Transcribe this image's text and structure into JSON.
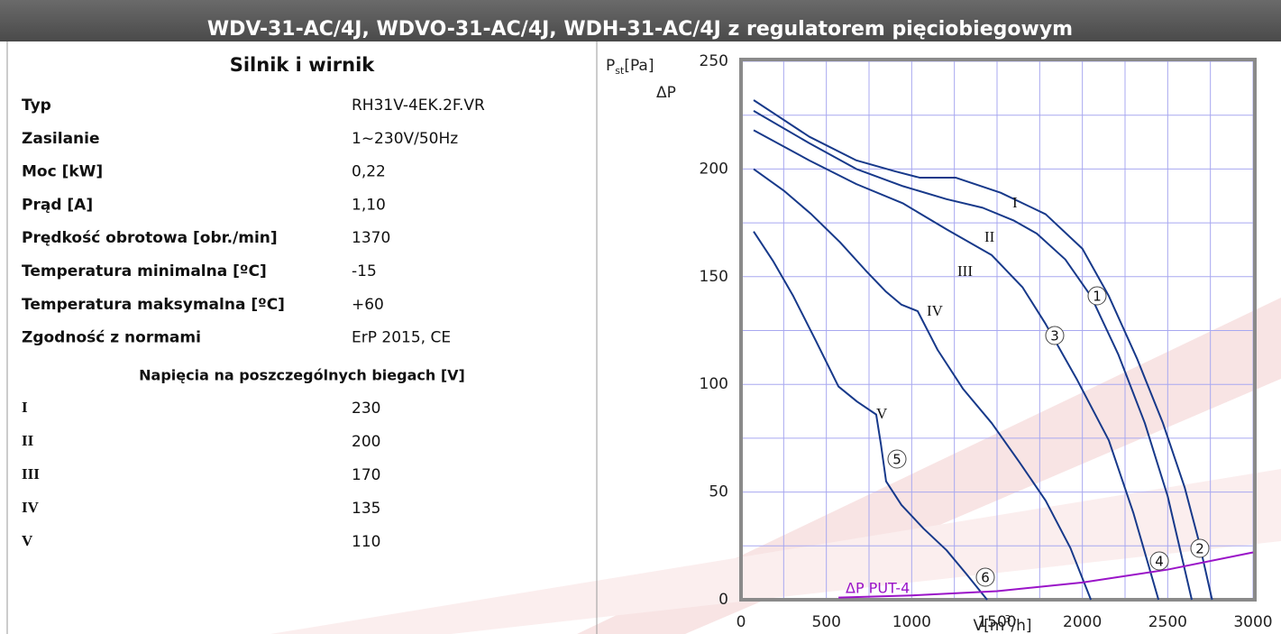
{
  "header": {
    "title": "WDV-31-AC/4J, WDVO-31-AC/4J, WDH-31-AC/4J z regulatorem pięciobiegowym"
  },
  "table": {
    "title": "Silnik i wirnik",
    "rows": [
      [
        "Typ",
        "RH31V-4EK.2F.VR"
      ],
      [
        "Zasilanie",
        "1~230V/50Hz"
      ],
      [
        "Moc [kW]",
        "0,22"
      ],
      [
        "Prąd [A]",
        "1,10"
      ],
      [
        "Prędkość obrotowa [obr./min]",
        "1370"
      ],
      [
        "Temperatura minimalna [ºC]",
        "-15"
      ],
      [
        "Temperatura maksymalna [ºC]",
        "+60"
      ],
      [
        "Zgodność z normami",
        "ErP 2015, CE"
      ]
    ],
    "subtitle": "Napięcia na poszczególnych biegach [V]",
    "speed_rows": [
      [
        "I",
        "230"
      ],
      [
        "II",
        "200"
      ],
      [
        "III",
        "170"
      ],
      [
        "IV",
        "135"
      ],
      [
        "V",
        "110"
      ]
    ]
  },
  "chart_data": {
    "type": "line",
    "y_label": {
      "base": "P",
      "sub": "st",
      "unit": "[Pa]",
      "second": "ΔP"
    },
    "x_label": {
      "base": "V[m",
      "sup": "3",
      "unit": "/h]"
    },
    "xlim": [
      0,
      3000
    ],
    "xticks": [
      0,
      500,
      1000,
      1500,
      2000,
      2500,
      3000
    ],
    "ylim": [
      0,
      250
    ],
    "yticks": [
      0,
      50,
      100,
      150,
      200,
      250
    ],
    "grid": true,
    "series": [
      {
        "name": "I",
        "color": "#17398a",
        "x": [
          74,
          400,
          676,
          900,
          1046,
          1257,
          1521,
          1785,
          2000,
          2155,
          2320,
          2472,
          2600,
          2683,
          2760
        ],
        "values": [
          232,
          215,
          204,
          199,
          196,
          196,
          189,
          179,
          163,
          141,
          112,
          82,
          52,
          27,
          0
        ]
      },
      {
        "name": "II",
        "color": "#17398a",
        "x": [
          74,
          400,
          676,
          950,
          1204,
          1416,
          1600,
          1733,
          1900,
          2050,
          2210,
          2366,
          2500,
          2641
        ],
        "values": [
          227,
          212,
          200,
          192,
          186,
          182,
          176,
          170,
          158,
          141,
          114,
          82,
          48,
          0
        ]
      },
      {
        "name": "III",
        "color": "#17398a",
        "x": [
          74,
          400,
          676,
          950,
          1204,
          1469,
          1650,
          1785,
          1970,
          2155,
          2300,
          2446
        ],
        "values": [
          218,
          204,
          193,
          184,
          172,
          160,
          145,
          128,
          102,
          74,
          40,
          0
        ]
      },
      {
        "name": "IV",
        "color": "#17398a",
        "x": [
          74,
          250,
          412,
          580,
          729,
          850,
          940,
          1035,
          1152,
          1300,
          1469,
          1630,
          1785,
          1930,
          2050
        ],
        "values": [
          200,
          190,
          179,
          166,
          153,
          143,
          137,
          134,
          116,
          98,
          82,
          64,
          46,
          24,
          0
        ]
      },
      {
        "name": "V",
        "color": "#17398a",
        "x": [
          74,
          190,
          306,
          440,
          571,
          680,
          792,
          820,
          850,
          940,
          1070,
          1204,
          1320,
          1442
        ],
        "values": [
          171,
          157,
          141,
          120,
          99,
          92,
          86,
          72,
          55,
          44,
          33,
          23,
          12,
          0
        ]
      },
      {
        "name": "ΔP PUT-4",
        "color": "#9a14c8",
        "x": [
          571,
          1000,
          1500,
          2000,
          2500,
          3000
        ],
        "values": [
          1,
          2,
          4,
          8,
          14,
          22
        ]
      }
    ],
    "markers": [
      "1",
      "2",
      "3",
      "4",
      "5",
      "6"
    ]
  }
}
